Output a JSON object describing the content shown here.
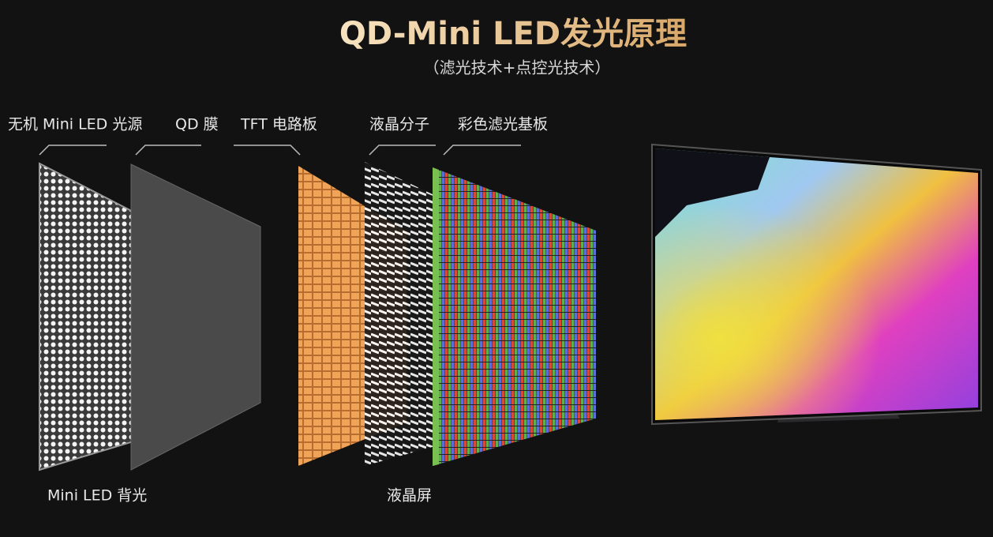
{
  "header": {
    "title": "QD-Mini LED发光原理",
    "subtitle": "（滤光技术+点控光技术）"
  },
  "layers": [
    "无机 Mini LED 光源",
    "QD 膜",
    "TFT 电路板",
    "液晶分子",
    "彩色滤光基板"
  ],
  "groups": [
    "Mini LED 背光",
    "液晶屏"
  ]
}
